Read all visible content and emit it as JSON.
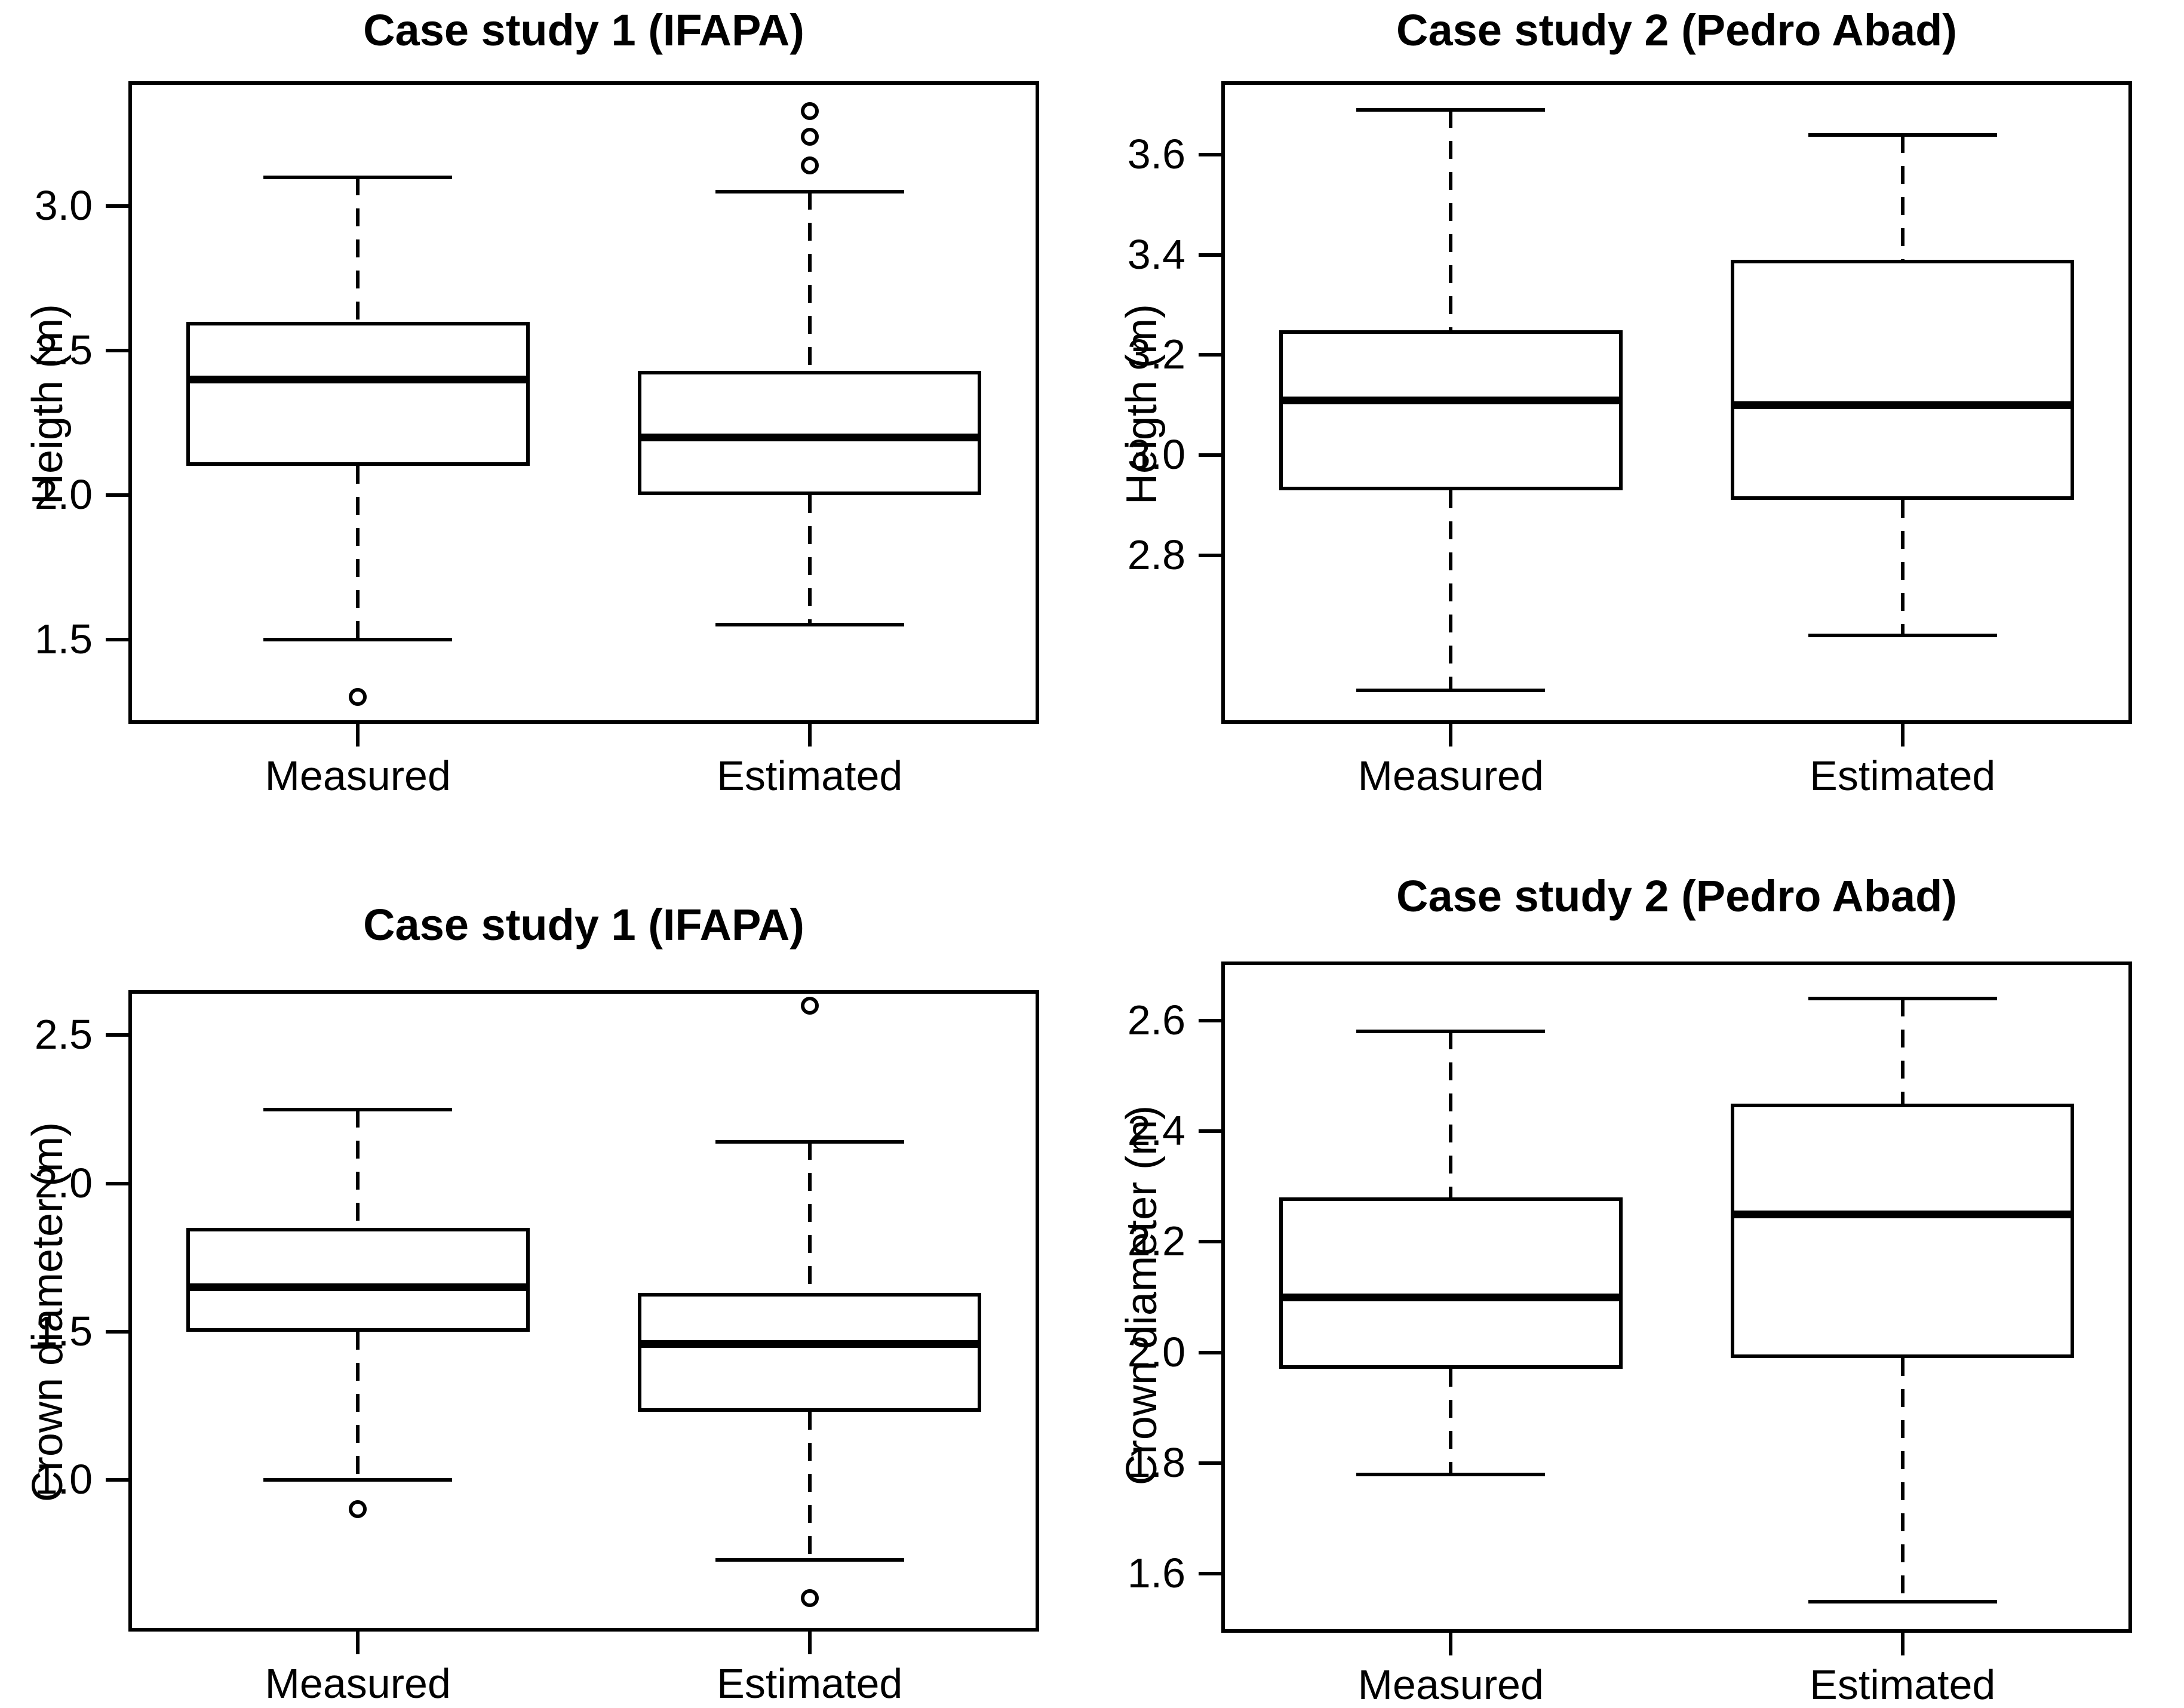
{
  "colors": {
    "foreground": "#000000",
    "background": "#ffffff"
  },
  "chart_data": [
    {
      "type": "boxplot",
      "title": "Case study 1 (IFAPA)",
      "ylabel": "Heigth (m)",
      "xlabel": "",
      "categories": [
        "Measured",
        "Estimated"
      ],
      "ytick_labels": [
        "3.0",
        "2.5",
        "2.0",
        "1.5"
      ],
      "ytick_values": [
        3.0,
        2.5,
        2.0,
        1.5
      ],
      "ylim": [
        1.22,
        3.42
      ],
      "grid": false,
      "legend": null,
      "series": [
        {
          "name": "Measured",
          "low": 1.5,
          "q1": 2.1,
          "median": 2.4,
          "q3": 2.6,
          "high": 3.1,
          "outliers": [
            1.3
          ]
        },
        {
          "name": "Estimated",
          "low": 1.55,
          "q1": 2.0,
          "median": 2.2,
          "q3": 2.43,
          "high": 3.05,
          "outliers": [
            3.14,
            3.24,
            3.33
          ]
        }
      ]
    },
    {
      "type": "boxplot",
      "title": "Case study 2 (Pedro Abad)",
      "ylabel": "Heigth (m)",
      "xlabel": "",
      "categories": [
        "Measured",
        "Estimated"
      ],
      "ytick_labels": [
        "3.6",
        "3.4",
        "3.2",
        "3.0",
        "2.8"
      ],
      "ytick_values": [
        3.6,
        3.4,
        3.2,
        3.0,
        2.8
      ],
      "ylim": [
        2.47,
        3.74
      ],
      "grid": false,
      "legend": null,
      "series": [
        {
          "name": "Measured",
          "low": 2.53,
          "q1": 2.93,
          "median": 3.11,
          "q3": 3.25,
          "high": 3.69,
          "outliers": []
        },
        {
          "name": "Estimated",
          "low": 2.64,
          "q1": 2.91,
          "median": 3.1,
          "q3": 3.39,
          "high": 3.64,
          "outliers": []
        }
      ]
    },
    {
      "type": "boxplot",
      "title": "Case study 1 (IFAPA)",
      "ylabel": "Crown diameter (m)",
      "xlabel": "",
      "categories": [
        "Measured",
        "Estimated"
      ],
      "ytick_labels": [
        "2.5",
        "2.0",
        "1.5",
        "1.0"
      ],
      "ytick_values": [
        2.5,
        2.0,
        1.5,
        1.0
      ],
      "ylim": [
        0.5,
        2.64
      ],
      "grid": false,
      "legend": null,
      "series": [
        {
          "name": "Measured",
          "low": 1.0,
          "q1": 1.5,
          "median": 1.65,
          "q3": 1.85,
          "high": 2.25,
          "outliers": [
            0.9
          ]
        },
        {
          "name": "Estimated",
          "low": 0.73,
          "q1": 1.23,
          "median": 1.46,
          "q3": 1.63,
          "high": 2.14,
          "outliers": [
            2.6,
            0.6
          ]
        }
      ]
    },
    {
      "type": "boxplot",
      "title": "Case study 2 (Pedro Abad)",
      "ylabel": "Crown diameter (m)",
      "xlabel": "",
      "categories": [
        "Measured",
        "Estimated"
      ],
      "ytick_labels": [
        "2.6",
        "2.4",
        "2.2",
        "2.0",
        "1.8",
        "1.6"
      ],
      "ytick_values": [
        2.6,
        2.4,
        2.2,
        2.0,
        1.8,
        1.6
      ],
      "ylim": [
        1.5,
        2.7
      ],
      "grid": false,
      "legend": null,
      "series": [
        {
          "name": "Measured",
          "low": 1.78,
          "q1": 1.97,
          "median": 2.1,
          "q3": 2.28,
          "high": 2.58,
          "outliers": []
        },
        {
          "name": "Estimated",
          "low": 1.55,
          "q1": 1.99,
          "median": 2.25,
          "q3": 2.45,
          "high": 2.64,
          "outliers": []
        }
      ]
    }
  ]
}
